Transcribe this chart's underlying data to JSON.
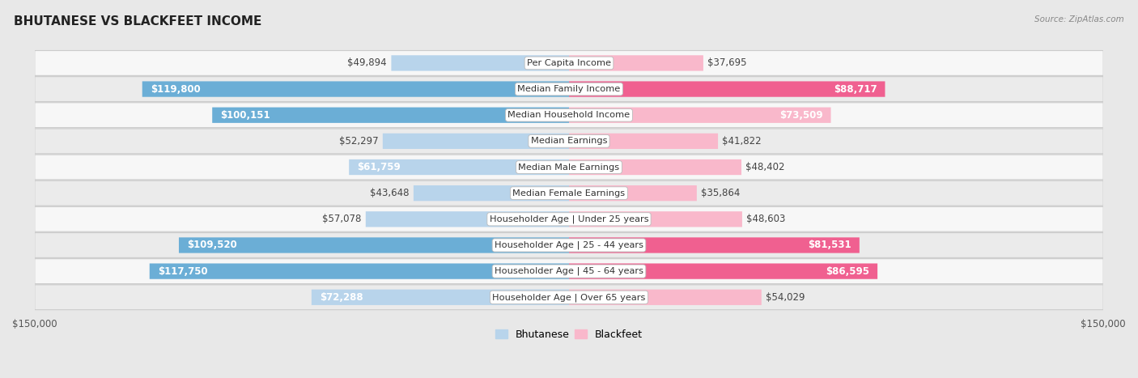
{
  "title": "BHUTANESE VS BLACKFEET INCOME",
  "source": "Source: ZipAtlas.com",
  "categories": [
    "Per Capita Income",
    "Median Family Income",
    "Median Household Income",
    "Median Earnings",
    "Median Male Earnings",
    "Median Female Earnings",
    "Householder Age | Under 25 years",
    "Householder Age | 25 - 44 years",
    "Householder Age | 45 - 64 years",
    "Householder Age | Over 65 years"
  ],
  "bhutanese": [
    49894,
    119800,
    100151,
    52297,
    61759,
    43648,
    57078,
    109520,
    117750,
    72288
  ],
  "blackfeet": [
    37695,
    88717,
    73509,
    41822,
    48402,
    35864,
    48603,
    81531,
    86595,
    54029
  ],
  "bhutanese_labels": [
    "$49,894",
    "$119,800",
    "$100,151",
    "$52,297",
    "$61,759",
    "$43,648",
    "$57,078",
    "$109,520",
    "$117,750",
    "$72,288"
  ],
  "blackfeet_labels": [
    "$37,695",
    "$88,717",
    "$73,509",
    "$41,822",
    "$48,402",
    "$35,864",
    "$48,603",
    "$81,531",
    "$86,595",
    "$54,029"
  ],
  "max_val": 150000,
  "blue_light": "#b8d4eb",
  "blue_dark": "#6baed6",
  "pink_light": "#f9b8cb",
  "pink_dark": "#f06090",
  "bg_color": "#e8e8e8",
  "row_bg_white": "#f7f7f7",
  "row_bg_gray": "#ebebeb",
  "label_fontsize": 8.5,
  "title_fontsize": 11,
  "axis_label_fontsize": 8.5,
  "inside_threshold": 55000,
  "blue_inside_threshold": 55000,
  "pink_inside_threshold": 55000
}
